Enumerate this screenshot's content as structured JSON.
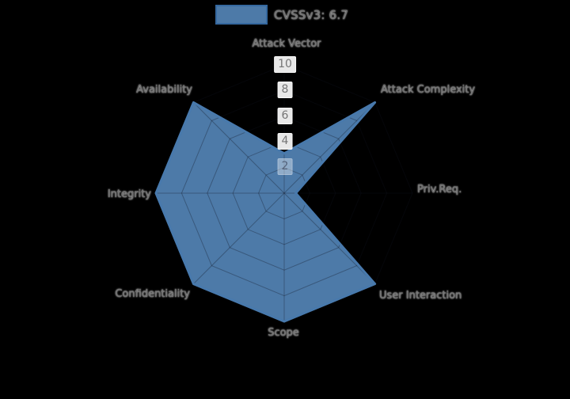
{
  "background_color": "#000000",
  "chart_data": {
    "type": "radar",
    "title": "",
    "legend": {
      "label": "CVSSv3: 6.7",
      "swatch_color": "#4d7aa8",
      "swatch_border_color": "#35689f",
      "position": "top-center"
    },
    "axes": [
      "Attack Vector",
      "Attack Complexity",
      "Priv.Req.",
      "User Interaction",
      "Scope",
      "Confidentiality",
      "Integrity",
      "Availability"
    ],
    "series": [
      {
        "name": "CVSSv3: 6.7",
        "values": [
          3.1,
          10,
          0.9,
          10,
          10,
          10,
          10,
          10
        ],
        "fill_color": "#4d7aa8",
        "stroke_color": "#4879ac"
      }
    ],
    "rlim": [
      0,
      10
    ],
    "radial_ticks": [
      10,
      8,
      6,
      4,
      2
    ],
    "grid": true,
    "grid_color": "rgba(15,20,30,0.32)",
    "angle_start": "top",
    "direction": "clockwise"
  }
}
